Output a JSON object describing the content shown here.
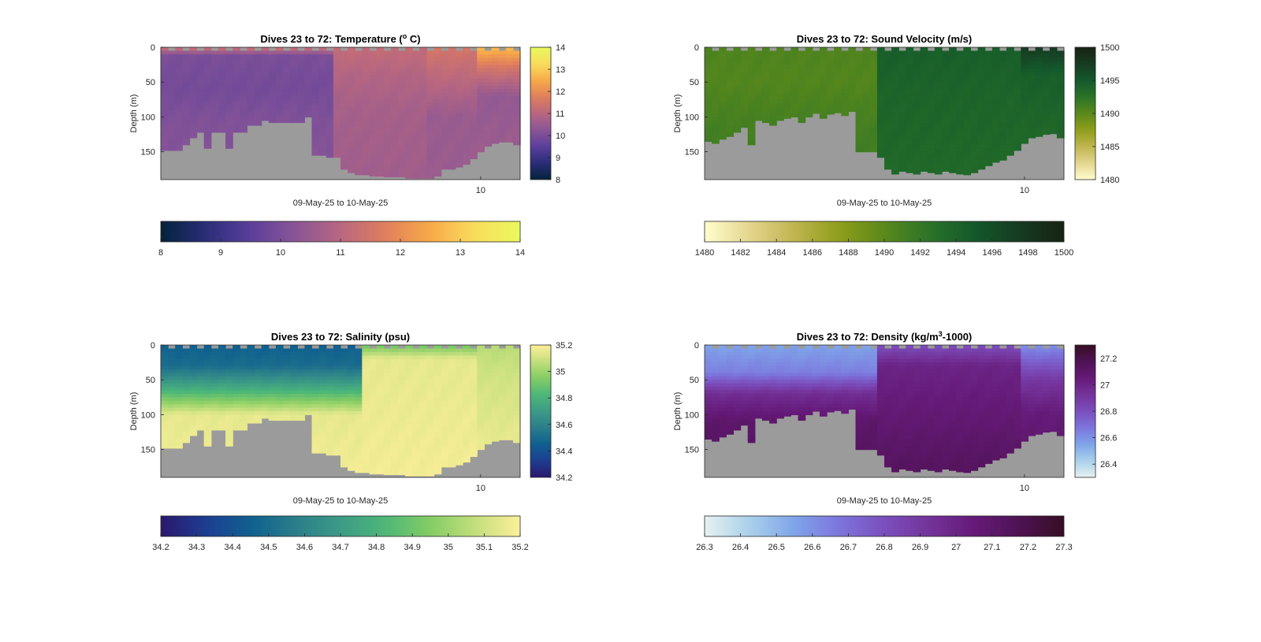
{
  "chart_data": [
    {
      "type": "heatmap",
      "title": "Dives 23 to 72: Temperature (",
      "title_sup": "o",
      "title_after": " C)",
      "ylabel": "Depth (m)",
      "xlabel": "09-May-25 to 10-May-25",
      "x_tick_labels": [
        "10"
      ],
      "x_tick_fraction": [
        0.89
      ],
      "yticks": [
        0,
        50,
        100,
        150
      ],
      "ylim": [
        0,
        190
      ],
      "ydir": "reverse",
      "num_dives": 50,
      "bottom_depth_m": [
        148,
        148,
        148,
        140,
        130,
        122,
        145,
        122,
        122,
        145,
        122,
        122,
        112,
        112,
        105,
        108,
        108,
        108,
        108,
        108,
        100,
        155,
        155,
        158,
        158,
        175,
        180,
        183,
        183,
        185,
        185,
        186,
        186,
        186,
        188,
        188,
        188,
        188,
        185,
        175,
        175,
        172,
        168,
        160,
        150,
        142,
        138,
        136,
        136,
        140
      ],
      "layers": [
        {
          "from_dive": 0,
          "to_dive": 24,
          "value_profile": [
            [
              0,
              11.4
            ],
            [
              12,
              10.0
            ],
            [
              60,
              9.9
            ],
            [
              110,
              10.1
            ],
            [
              190,
              10.2
            ]
          ]
        },
        {
          "from_dive": 24,
          "to_dive": 37,
          "value_profile": [
            [
              0,
              11.2
            ],
            [
              40,
              10.9
            ],
            [
              90,
              10.7
            ],
            [
              190,
              10.6
            ]
          ]
        },
        {
          "from_dive": 37,
          "to_dive": 44,
          "value_profile": [
            [
              0,
              11.5
            ],
            [
              50,
              11.0
            ],
            [
              100,
              10.5
            ],
            [
              190,
              10.5
            ]
          ]
        },
        {
          "from_dive": 44,
          "to_dive": 50,
          "value_profile": [
            [
              0,
              12.8
            ],
            [
              30,
              11.5
            ],
            [
              70,
              10.4
            ],
            [
              190,
              10.6
            ]
          ]
        }
      ],
      "colorbar": {
        "ticks": [
          8,
          9,
          10,
          11,
          12,
          13,
          14
        ],
        "range": [
          8,
          14
        ],
        "colormap": "thermal"
      }
    },
    {
      "type": "heatmap",
      "title": "Dives 23 to 72: Sound Velocity (m/s)",
      "ylabel": "Depth (m)",
      "xlabel": "09-May-25 to 10-May-25",
      "x_tick_labels": [
        "10"
      ],
      "x_tick_fraction": [
        0.89
      ],
      "yticks": [
        0,
        50,
        100,
        150
      ],
      "ylim": [
        0,
        190
      ],
      "ydir": "reverse",
      "num_dives": 50,
      "bottom_depth_m": [
        135,
        138,
        132,
        128,
        122,
        115,
        140,
        105,
        108,
        112,
        105,
        102,
        100,
        108,
        100,
        95,
        102,
        96,
        94,
        98,
        92,
        150,
        150,
        150,
        158,
        175,
        182,
        178,
        180,
        182,
        178,
        180,
        182,
        178,
        180,
        182,
        183,
        180,
        175,
        170,
        165,
        162,
        155,
        148,
        138,
        130,
        128,
        125,
        124,
        130
      ],
      "layers": [
        {
          "from_dive": 0,
          "to_dive": 24,
          "value_profile": [
            [
              0,
              1490.6
            ],
            [
              50,
              1490.4
            ],
            [
              120,
              1491.2
            ],
            [
              190,
              1491.5
            ]
          ]
        },
        {
          "from_dive": 24,
          "to_dive": 44,
          "value_profile": [
            [
              0,
              1494.5
            ],
            [
              60,
              1494.0
            ],
            [
              190,
              1493.5
            ]
          ]
        },
        {
          "from_dive": 44,
          "to_dive": 50,
          "value_profile": [
            [
              0,
              1497.5
            ],
            [
              40,
              1494.5
            ],
            [
              190,
              1493.0
            ]
          ]
        }
      ],
      "colorbar": {
        "ticks": [
          1480,
          1482,
          1484,
          1486,
          1488,
          1490,
          1492,
          1494,
          1496,
          1498,
          1500
        ],
        "right_ticks": [
          1480,
          1485,
          1490,
          1495,
          1500
        ],
        "range": [
          1480,
          1500
        ],
        "colormap": "speed"
      }
    },
    {
      "type": "heatmap",
      "title": "Dives 23 to 72: Salinity (psu)",
      "ylabel": "Depth (m)",
      "xlabel": "09-May-25 to 10-May-25",
      "x_tick_labels": [
        "10"
      ],
      "x_tick_fraction": [
        0.89
      ],
      "yticks": [
        0,
        50,
        100,
        150
      ],
      "ylim": [
        0,
        190
      ],
      "ydir": "reverse",
      "num_dives": 50,
      "bottom_depth_m": [
        148,
        148,
        148,
        140,
        130,
        122,
        145,
        122,
        122,
        145,
        122,
        122,
        112,
        112,
        105,
        108,
        108,
        108,
        108,
        108,
        100,
        155,
        155,
        158,
        158,
        175,
        180,
        183,
        183,
        185,
        185,
        186,
        186,
        186,
        188,
        188,
        188,
        188,
        185,
        175,
        175,
        172,
        168,
        160,
        150,
        142,
        138,
        136,
        136,
        140
      ],
      "layers": [
        {
          "from_dive": 0,
          "to_dive": 28,
          "value_profile": [
            [
              0,
              34.45
            ],
            [
              30,
              34.5
            ],
            [
              60,
              34.75
            ],
            [
              85,
              35.0
            ],
            [
              100,
              35.15
            ],
            [
              190,
              35.18
            ]
          ]
        },
        {
          "from_dive": 28,
          "to_dive": 44,
          "value_profile": [
            [
              0,
              34.9
            ],
            [
              20,
              35.15
            ],
            [
              190,
              35.18
            ]
          ]
        },
        {
          "from_dive": 44,
          "to_dive": 50,
          "value_profile": [
            [
              0,
              35.05
            ],
            [
              40,
              35.1
            ],
            [
              190,
              35.18
            ]
          ]
        }
      ],
      "colorbar": {
        "ticks": [
          34.2,
          34.3,
          34.4,
          34.5,
          34.6,
          34.7,
          34.8,
          34.9,
          35,
          35.1,
          35.2
        ],
        "right_ticks": [
          34.2,
          34.4,
          34.6,
          34.8,
          35,
          35.2
        ],
        "range": [
          34.2,
          35.2
        ],
        "colormap": "haline"
      }
    },
    {
      "type": "heatmap",
      "title": "Dives 23 to 72: Density (kg/m",
      "title_sup": "3",
      "title_after": "-1000)",
      "ylabel": "Depth (m)",
      "xlabel": "09-May-25 to 10-May-25",
      "x_tick_labels": [
        "10"
      ],
      "x_tick_fraction": [
        0.89
      ],
      "yticks": [
        0,
        50,
        100,
        150
      ],
      "ylim": [
        0,
        190
      ],
      "ydir": "reverse",
      "num_dives": 50,
      "bottom_depth_m": [
        135,
        138,
        132,
        128,
        122,
        115,
        140,
        105,
        108,
        112,
        105,
        102,
        100,
        108,
        100,
        95,
        102,
        96,
        94,
        98,
        92,
        150,
        150,
        150,
        158,
        175,
        182,
        178,
        180,
        182,
        178,
        180,
        182,
        178,
        180,
        182,
        183,
        180,
        175,
        170,
        165,
        162,
        155,
        148,
        138,
        130,
        128,
        125,
        124,
        130
      ],
      "layers": [
        {
          "from_dive": 0,
          "to_dive": 24,
          "value_profile": [
            [
              0,
              26.55
            ],
            [
              40,
              26.65
            ],
            [
              70,
              26.95
            ],
            [
              110,
              27.1
            ],
            [
              190,
              27.15
            ]
          ]
        },
        {
          "from_dive": 24,
          "to_dive": 44,
          "value_profile": [
            [
              0,
              26.8
            ],
            [
              30,
              27.0
            ],
            [
              190,
              27.15
            ]
          ]
        },
        {
          "from_dive": 44,
          "to_dive": 50,
          "value_profile": [
            [
              0,
              26.6
            ],
            [
              50,
              26.9
            ],
            [
              100,
              27.05
            ],
            [
              190,
              27.1
            ]
          ]
        }
      ],
      "colorbar": {
        "ticks": [
          26.3,
          26.4,
          26.5,
          26.6,
          26.7,
          26.8,
          26.9,
          27,
          27.1,
          27.2,
          27.3
        ],
        "right_ticks": [
          26.4,
          26.6,
          26.8,
          27,
          27.2
        ],
        "range": [
          26.3,
          27.3
        ],
        "colormap": "dense"
      }
    }
  ]
}
